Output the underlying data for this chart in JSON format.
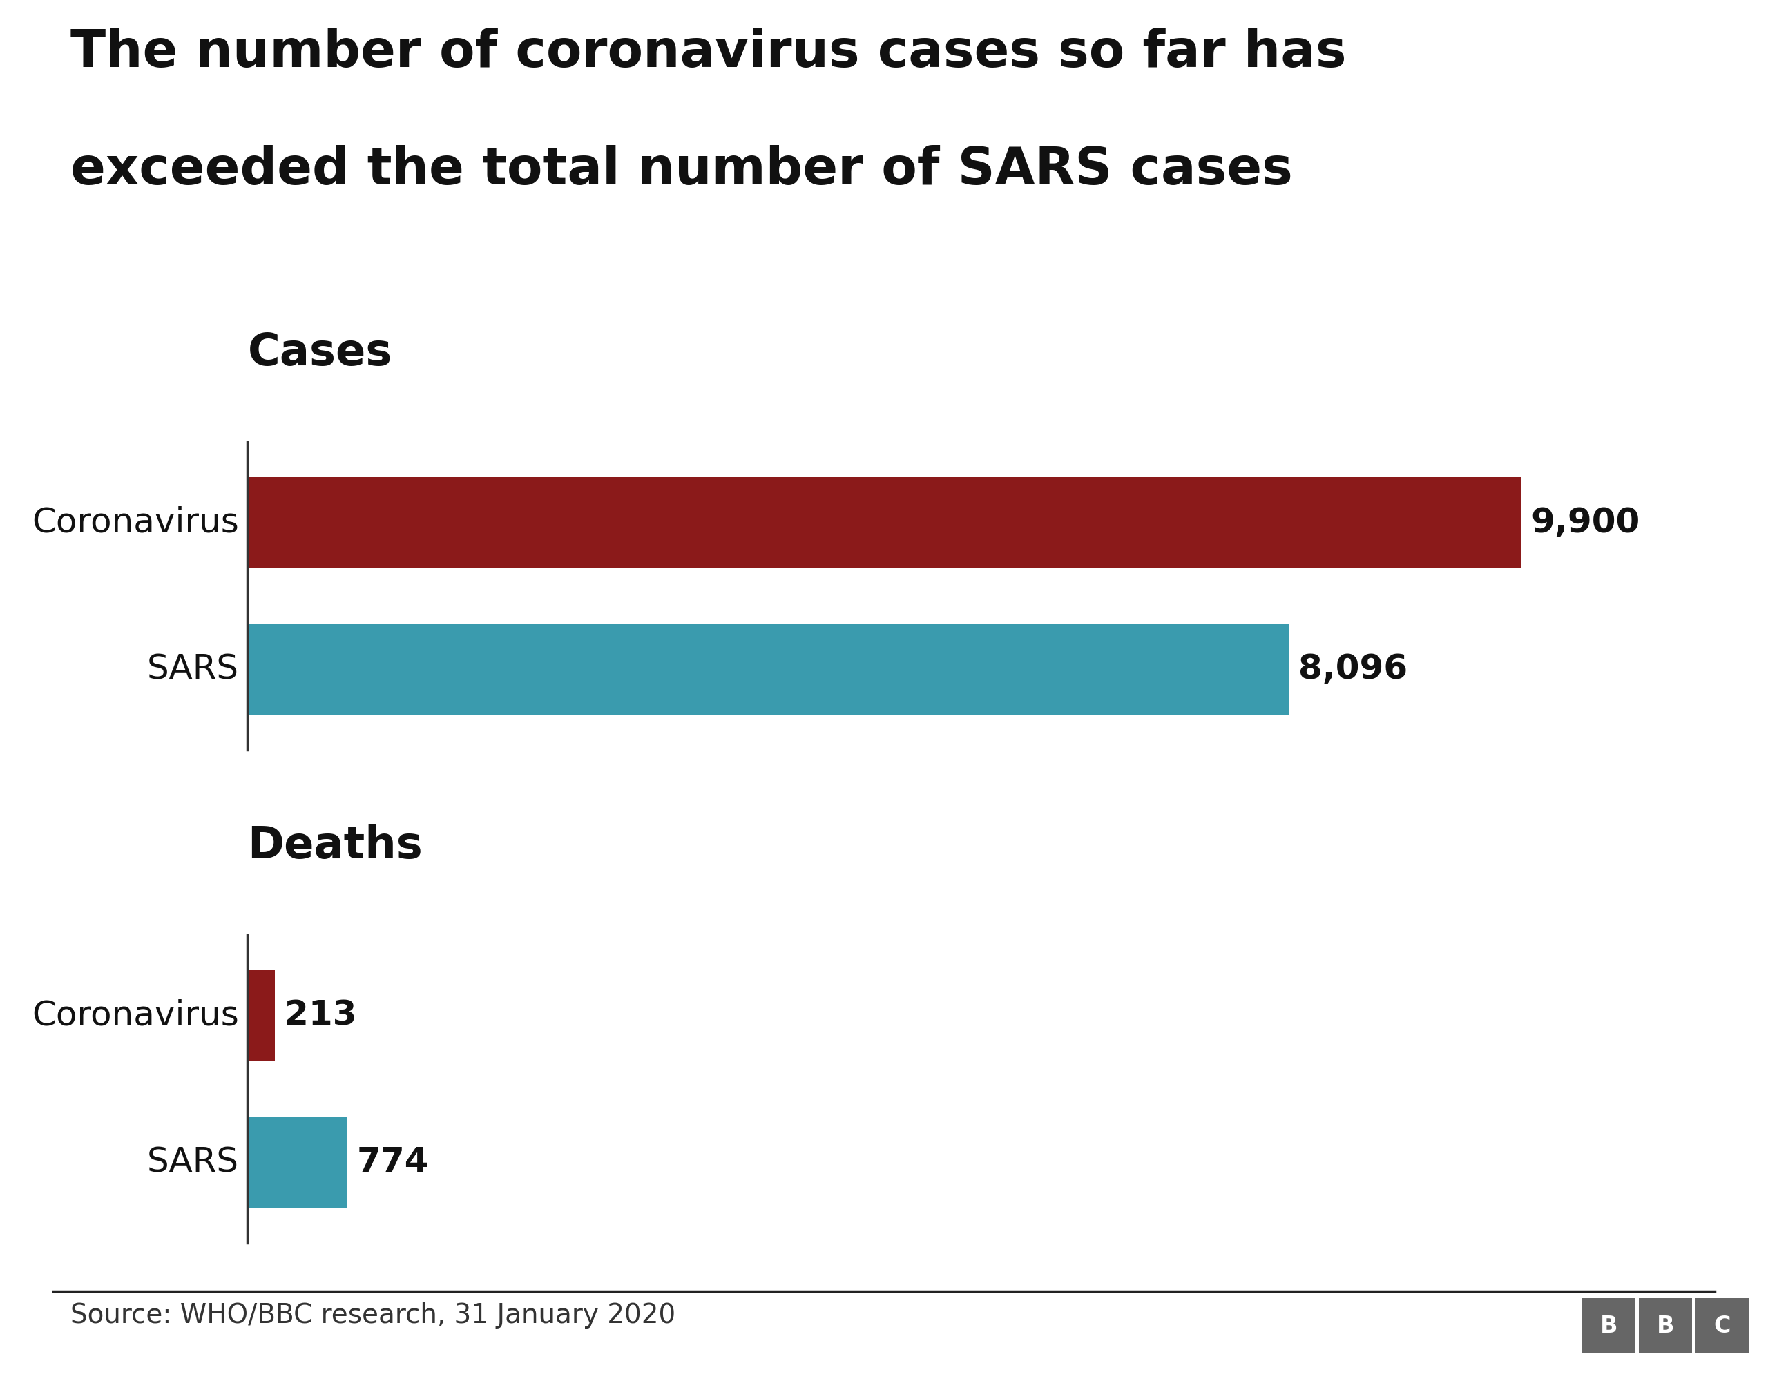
{
  "title_line1": "The number of coronavirus cases so far has",
  "title_line2": "exceeded the total number of SARS cases",
  "title_fontsize": 54,
  "title_fontweight": "bold",
  "cases_label": "Cases",
  "deaths_label": "Deaths",
  "cases_categories": [
    "Coronavirus",
    "SARS"
  ],
  "cases_values": [
    9900,
    8096
  ],
  "cases_labels": [
    "9,900",
    "8,096"
  ],
  "deaths_categories": [
    "Coronavirus",
    "SARS"
  ],
  "deaths_values": [
    213,
    774
  ],
  "deaths_labels": [
    "213",
    "774"
  ],
  "corona_color": "#8B1A1A",
  "sars_color": "#3A9BAE",
  "background_color": "#FFFFFF",
  "source_text": "Source: WHO/BBC research, 31 January 2020",
  "source_fontsize": 28,
  "category_fontsize": 36,
  "section_label_fontsize": 46,
  "value_label_fontsize": 36,
  "bar_height": 0.62,
  "xlim": [
    0,
    11000
  ]
}
